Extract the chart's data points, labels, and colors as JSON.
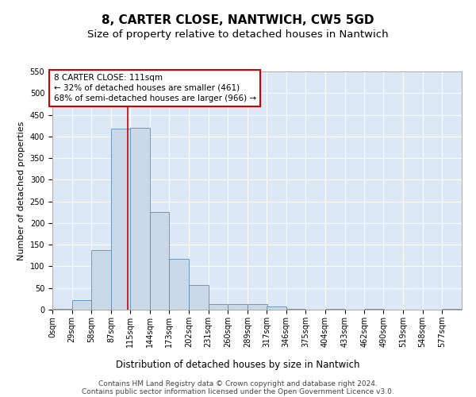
{
  "title": "8, CARTER CLOSE, NANTWICH, CW5 5GD",
  "subtitle": "Size of property relative to detached houses in Nantwich",
  "xlabel": "Distribution of detached houses by size in Nantwich",
  "ylabel": "Number of detached properties",
  "bin_labels": [
    "0sqm",
    "29sqm",
    "58sqm",
    "87sqm",
    "115sqm",
    "144sqm",
    "173sqm",
    "202sqm",
    "231sqm",
    "260sqm",
    "289sqm",
    "317sqm",
    "346sqm",
    "375sqm",
    "404sqm",
    "433sqm",
    "462sqm",
    "490sqm",
    "519sqm",
    "548sqm",
    "577sqm"
  ],
  "bin_edges": [
    0,
    29,
    58,
    87,
    115,
    144,
    173,
    202,
    231,
    260,
    289,
    317,
    346,
    375,
    404,
    433,
    462,
    490,
    519,
    548,
    577
  ],
  "bar_heights": [
    2,
    22,
    137,
    418,
    420,
    225,
    118,
    57,
    13,
    13,
    13,
    7,
    2,
    0,
    2,
    0,
    2,
    0,
    0,
    0,
    2
  ],
  "bar_color": "#c9d9e8",
  "bar_edge_color": "#5b8db8",
  "property_line_x": 111,
  "annotation_text": "8 CARTER CLOSE: 111sqm\n← 32% of detached houses are smaller (461)\n68% of semi-detached houses are larger (966) →",
  "annotation_box_color": "#ffffff",
  "annotation_box_edge": "#cc0000",
  "vline_color": "#cc0000",
  "ylim": [
    0,
    550
  ],
  "yticks": [
    0,
    50,
    100,
    150,
    200,
    250,
    300,
    350,
    400,
    450,
    500,
    550
  ],
  "axes_bg_color": "#dce8f5",
  "background_color": "#ffffff",
  "grid_color": "#ffffff",
  "footer_line1": "Contains HM Land Registry data © Crown copyright and database right 2024.",
  "footer_line2": "Contains public sector information licensed under the Open Government Licence v3.0.",
  "title_fontsize": 11,
  "subtitle_fontsize": 9.5,
  "xlabel_fontsize": 8.5,
  "ylabel_fontsize": 8,
  "tick_fontsize": 7,
  "annotation_fontsize": 7.5,
  "footer_fontsize": 6.5
}
